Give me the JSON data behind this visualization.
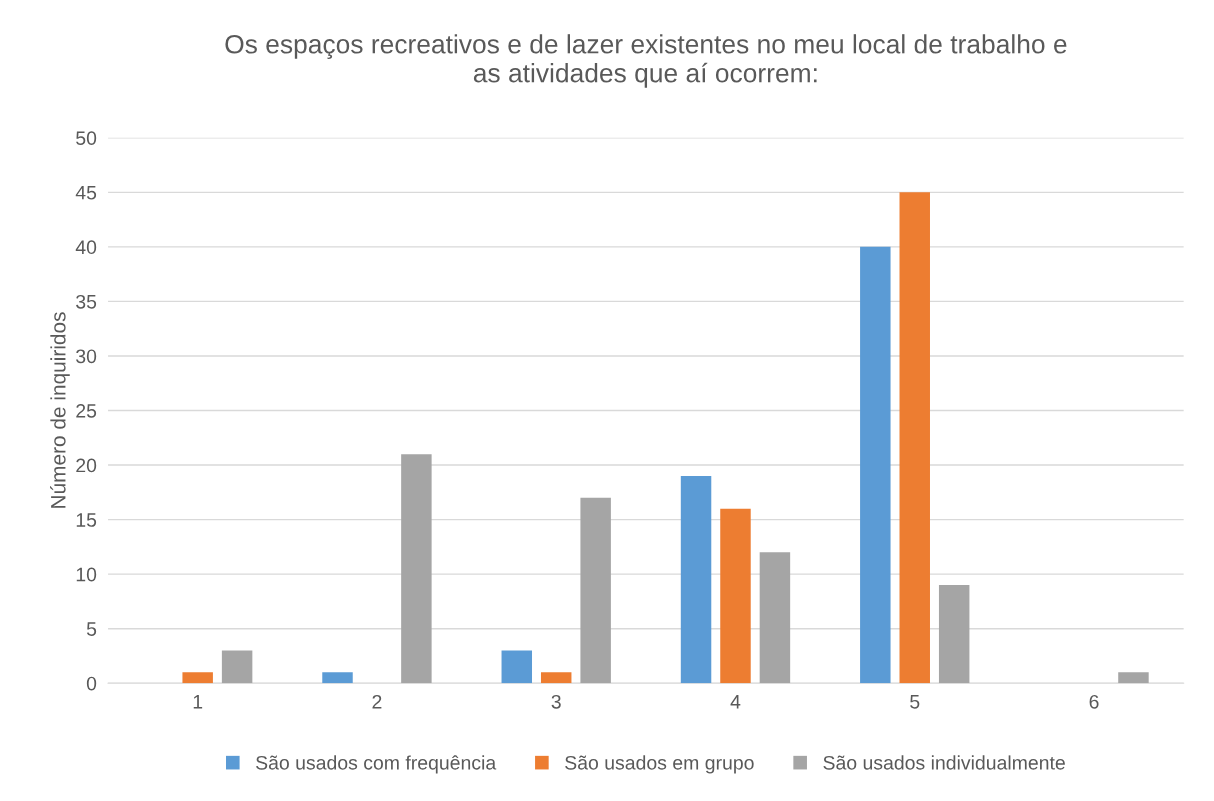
{
  "chart_data": {
    "type": "bar",
    "title": "Os espaços recreativos e de lazer existentes no meu local de trabalho e\nas atividades que aí ocorrem:",
    "ylabel": "Número de inquiridos",
    "categories": [
      "1",
      "2",
      "3",
      "4",
      "5",
      "6"
    ],
    "series": [
      {
        "name": "São usados com frequência",
        "color": "#5b9bd5",
        "values": [
          0,
          1,
          3,
          19,
          40,
          0
        ]
      },
      {
        "name": "São usados em grupo",
        "color": "#ed7d31",
        "values": [
          1,
          0,
          1,
          16,
          45,
          0
        ]
      },
      {
        "name": "São usados individualmente",
        "color": "#a5a5a5",
        "values": [
          3,
          21,
          17,
          12,
          9,
          1
        ]
      }
    ],
    "ylim": [
      0,
      50
    ],
    "yticks": [
      0,
      5,
      10,
      15,
      20,
      25,
      30,
      35,
      40,
      45,
      50
    ],
    "grid": "y",
    "legend": "bottom"
  }
}
